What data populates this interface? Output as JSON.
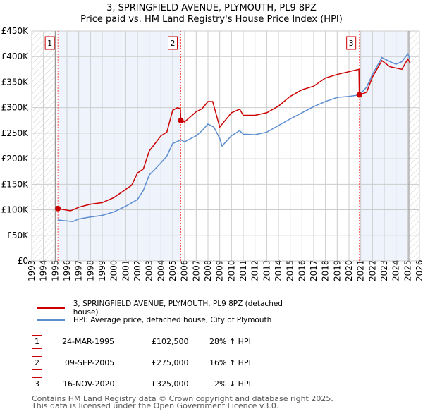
{
  "title": "3, SPRINGFIELD AVENUE, PLYMOUTH, PL9 8PZ",
  "subtitle": "Price paid vs. HM Land Registry's House Price Index (HPI)",
  "chart_data": {
    "type": "line",
    "title": "3, SPRINGFIELD AVENUE, PLYMOUTH, PL9 8PZ",
    "subtitle": "Price paid vs. HM Land Registry's House Price Index (HPI)",
    "xlim": [
      1993,
      2026
    ],
    "ylim": [
      0,
      450000
    ],
    "x_ticks": [
      "1993",
      "1994",
      "1995",
      "1996",
      "1997",
      "1998",
      "1999",
      "2000",
      "2001",
      "2002",
      "2003",
      "2004",
      "2005",
      "2006",
      "2007",
      "2008",
      "2009",
      "2010",
      "2011",
      "2012",
      "2013",
      "2014",
      "2015",
      "2016",
      "2017",
      "2018",
      "2019",
      "2020",
      "2021",
      "2022",
      "2023",
      "2024",
      "2025",
      "2026"
    ],
    "y_ticks": [
      {
        "v": 0,
        "l": "£0"
      },
      {
        "v": 50000,
        "l": "£50K"
      },
      {
        "v": 100000,
        "l": "£100K"
      },
      {
        "v": 150000,
        "l": "£150K"
      },
      {
        "v": 200000,
        "l": "£200K"
      },
      {
        "v": 250000,
        "l": "£250K"
      },
      {
        "v": 300000,
        "l": "£300K"
      },
      {
        "v": 350000,
        "l": "£350K"
      },
      {
        "v": 400000,
        "l": "£400K"
      },
      {
        "v": 450000,
        "l": "£450K"
      }
    ],
    "grid": true,
    "series": [
      {
        "name": "3, SPRINGFIELD AVENUE, PLYMOUTH, PL9 8PZ (detached house)",
        "color": "#cc0000",
        "x": [
          1995.2,
          1996.3,
          1997,
          1998,
          1999,
          2000,
          2001,
          2001.5,
          2002,
          2002.5,
          2003,
          2004,
          2004.5,
          2005,
          2005.4,
          2005.65,
          2005.69,
          2006,
          2007,
          2007.5,
          2008,
          2008.4,
          2009,
          2010,
          2010.7,
          2011,
          2012,
          2013,
          2014,
          2015,
          2016,
          2017,
          2018,
          2019,
          2020.85,
          2020.88,
          2021.5,
          2022,
          2022.8,
          2023.5,
          2024.5,
          2025,
          2025.2
        ],
        "y": [
          102500,
          98000,
          105000,
          111000,
          114000,
          124000,
          140000,
          148000,
          172000,
          180000,
          215000,
          245000,
          252000,
          295000,
          300000,
          298000,
          275000,
          272000,
          292000,
          298000,
          312000,
          312000,
          262000,
          290000,
          297000,
          285000,
          285000,
          290000,
          303000,
          322000,
          335000,
          342000,
          358000,
          365000,
          375000,
          325000,
          330000,
          360000,
          392000,
          380000,
          375000,
          395000,
          388000
        ]
      },
      {
        "name": "HPI: Average price, detached house, City of Plymouth",
        "color": "#5b8dd0",
        "x": [
          1995.2,
          1996.5,
          1997,
          1998,
          1999,
          2000,
          2001,
          2002,
          2002.5,
          2003,
          2003.5,
          2004,
          2004.5,
          2005,
          2005.7,
          2006,
          2007,
          2007.5,
          2008,
          2008.5,
          2009,
          2009.2,
          2010,
          2010.7,
          2011,
          2012,
          2013,
          2014,
          2015,
          2016,
          2017,
          2018,
          2019,
          2020,
          2020.9,
          2021.5,
          2022,
          2022.8,
          2023.5,
          2024,
          2024.5,
          2025,
          2025.2
        ],
        "y": [
          80000,
          77000,
          82000,
          86000,
          89000,
          96000,
          107000,
          120000,
          138000,
          168000,
          180000,
          192000,
          205000,
          230000,
          237000,
          233000,
          245000,
          255000,
          268000,
          262000,
          240000,
          225000,
          245000,
          255000,
          248000,
          247000,
          252000,
          265000,
          278000,
          290000,
          302000,
          312000,
          320000,
          322000,
          325000,
          340000,
          365000,
          398000,
          390000,
          385000,
          390000,
          405000,
          395000
        ]
      }
    ],
    "annotations": [
      {
        "label": "1",
        "x": 1995.23,
        "y": 102500
      },
      {
        "label": "2",
        "x": 2005.69,
        "y": 275000
      },
      {
        "label": "3",
        "x": 2020.88,
        "y": 325000
      }
    ],
    "legend_position": "bottom"
  },
  "sales": [
    {
      "num": "1",
      "date": "24-MAR-1995",
      "price": "£102,500",
      "hpi": "28% ↑ HPI"
    },
    {
      "num": "2",
      "date": "09-SEP-2005",
      "price": "£275,000",
      "hpi": "16% ↑ HPI"
    },
    {
      "num": "3",
      "date": "16-NOV-2020",
      "price": "£325,000",
      "hpi": "2% ↓ HPI"
    }
  ],
  "footer": [
    "Contains HM Land Registry data © Crown copyright and database right 2025.",
    "This data is licensed under the Open Government Licence v3.0."
  ]
}
